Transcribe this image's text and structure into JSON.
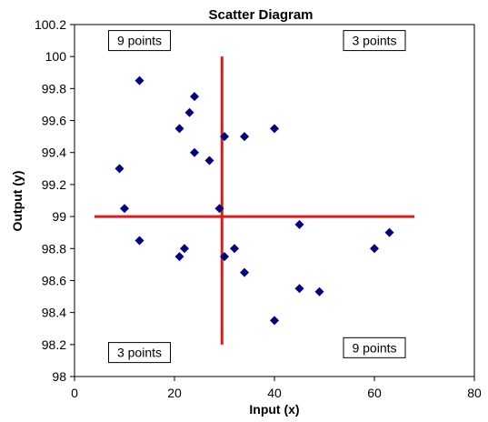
{
  "chart_data": {
    "type": "scatter",
    "title": "Scatter Diagram",
    "xlabel": "Input (x)",
    "ylabel": "Output (y)",
    "xlim": [
      0,
      80
    ],
    "ylim": [
      98,
      100.2
    ],
    "x_ticks": [
      0,
      20,
      40,
      60,
      80
    ],
    "y_ticks": [
      98,
      98.2,
      98.4,
      98.6,
      98.8,
      99,
      99.2,
      99.4,
      99.6,
      99.8,
      100,
      100.2
    ],
    "grid": false,
    "marker_color": "#000080",
    "points": [
      {
        "x": 13,
        "y": 99.85
      },
      {
        "x": 24,
        "y": 99.75
      },
      {
        "x": 23,
        "y": 99.65
      },
      {
        "x": 21,
        "y": 99.55
      },
      {
        "x": 30,
        "y": 99.5
      },
      {
        "x": 34,
        "y": 99.5
      },
      {
        "x": 40,
        "y": 99.55
      },
      {
        "x": 24,
        "y": 99.4
      },
      {
        "x": 27,
        "y": 99.35
      },
      {
        "x": 9,
        "y": 99.3
      },
      {
        "x": 10,
        "y": 99.05
      },
      {
        "x": 29,
        "y": 99.05
      },
      {
        "x": 45,
        "y": 98.95
      },
      {
        "x": 63,
        "y": 98.9
      },
      {
        "x": 13,
        "y": 98.85
      },
      {
        "x": 22,
        "y": 98.8
      },
      {
        "x": 32,
        "y": 98.8
      },
      {
        "x": 60,
        "y": 98.8
      },
      {
        "x": 21,
        "y": 98.75
      },
      {
        "x": 30,
        "y": 98.75
      },
      {
        "x": 34,
        "y": 98.65
      },
      {
        "x": 45,
        "y": 98.55
      },
      {
        "x": 49,
        "y": 98.53
      },
      {
        "x": 40,
        "y": 98.35
      }
    ],
    "reference_lines": {
      "color": "#e31a1c",
      "vertical": {
        "x": 29.5,
        "y_from": 98.2,
        "y_to": 100
      },
      "horizontal": {
        "y": 99,
        "x_from": 4,
        "x_to": 68
      }
    },
    "annotations": [
      {
        "text": "9 points",
        "x": 13,
        "y": 100.1
      },
      {
        "text": "3 points",
        "x": 60,
        "y": 100.1
      },
      {
        "text": "3 points",
        "x": 13,
        "y": 98.15
      },
      {
        "text": "9 points",
        "x": 60,
        "y": 98.18
      }
    ]
  }
}
